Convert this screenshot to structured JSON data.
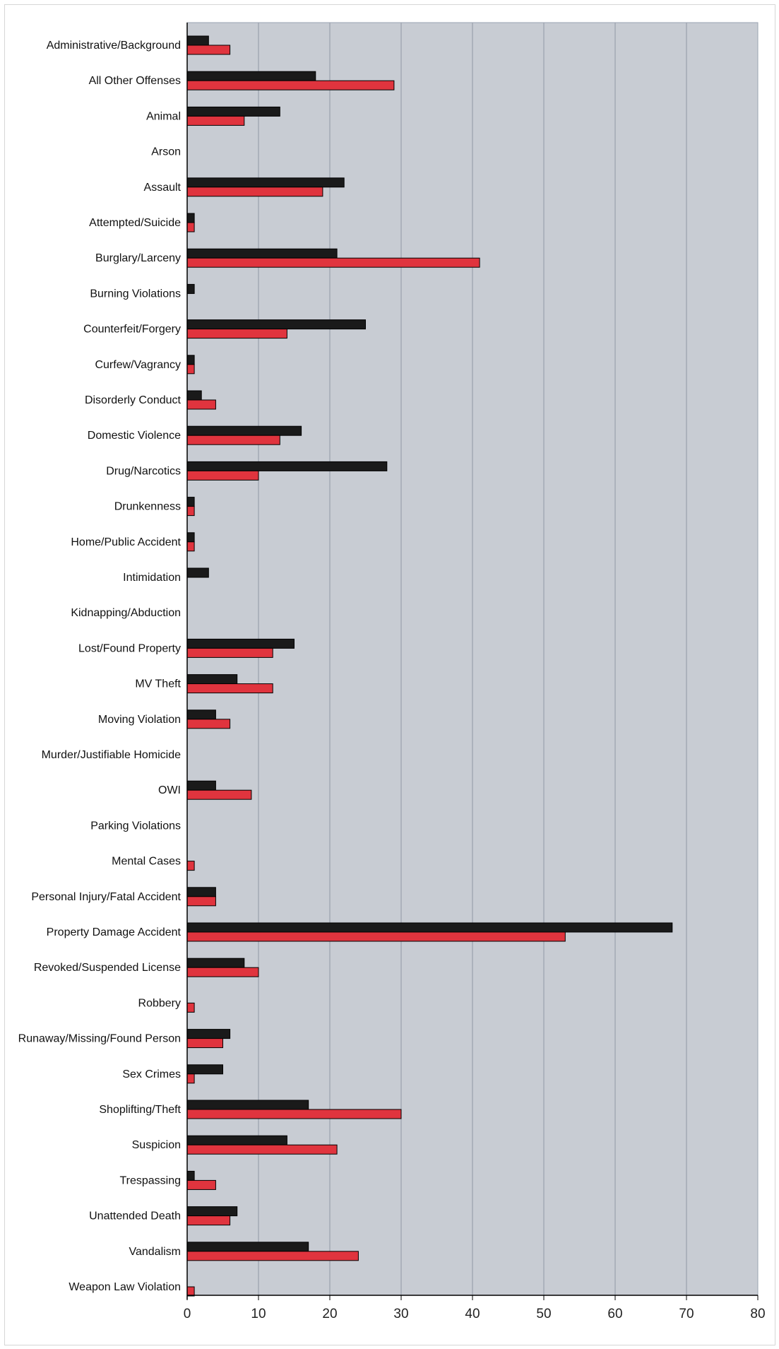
{
  "chart_data": {
    "type": "bar",
    "orientation": "horizontal",
    "title": "",
    "xlabel": "",
    "ylabel": "",
    "xlim": [
      0,
      80
    ],
    "x_ticks": [
      0,
      10,
      20,
      30,
      40,
      50,
      60,
      70,
      80
    ],
    "grid": true,
    "legend": "none",
    "categories": [
      "Administrative/Background",
      "All Other Offenses",
      "Animal",
      "Arson",
      "Assault",
      "Attempted/Suicide",
      "Burglary/Larceny",
      "Burning Violations",
      "Counterfeit/Forgery",
      "Curfew/Vagrancy",
      "Disorderly Conduct",
      "Domestic Violence",
      "Drug/Narcotics",
      "Drunkenness",
      "Home/Public Accident",
      "Intimidation",
      "Kidnapping/Abduction",
      "Lost/Found Property",
      "MV Theft",
      "Moving Violation",
      "Murder/Justifiable Homicide",
      "OWI",
      "Parking Violations",
      "Mental Cases",
      "Personal Injury/Fatal Accident",
      "Property Damage Accident",
      "Revoked/Suspended License",
      "Robbery",
      "Runaway/Missing/Found Person",
      "Sex Crimes",
      "Shoplifting/Theft",
      "Suspicion",
      "Trespassing",
      "Unattended Death",
      "Vandalism",
      "Weapon Law Violation"
    ],
    "series": [
      {
        "color": "#1a1a1a",
        "values": [
          3,
          18,
          13,
          0,
          22,
          1,
          21,
          1,
          25,
          1,
          2,
          16,
          28,
          1,
          1,
          3,
          0,
          15,
          7,
          4,
          0,
          4,
          0,
          0,
          4,
          68,
          8,
          0,
          6,
          5,
          17,
          14,
          1,
          7,
          17,
          0
        ]
      },
      {
        "color": "#e0343e",
        "values": [
          6,
          29,
          8,
          0,
          19,
          1,
          41,
          0,
          14,
          1,
          4,
          13,
          10,
          1,
          1,
          0,
          0,
          12,
          12,
          6,
          0,
          9,
          0,
          1,
          4,
          53,
          10,
          1,
          5,
          1,
          30,
          21,
          4,
          6,
          24,
          1
        ]
      }
    ],
    "colors": {
      "plot_background": "#c8ccd3",
      "gridline": "#8f98a6",
      "bar_border": "#000000"
    }
  }
}
